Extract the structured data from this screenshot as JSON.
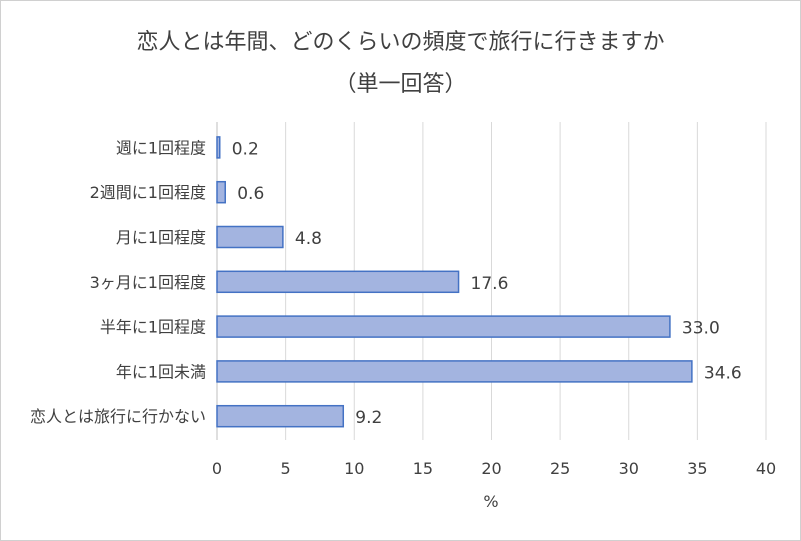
{
  "chart_data": {
    "type": "bar",
    "orientation": "horizontal",
    "title_line1": "恋人とは年間、どのくらいの頻度で旅行に行きますか",
    "title_line2": "（単一回答）",
    "categories": [
      "週に1回程度",
      "2週間に1回程度",
      "月に1回程度",
      "3ヶ月に1回程度",
      "半年に1回程度",
      "年に1回未満",
      "恋人とは旅行に行かない"
    ],
    "values": [
      0.2,
      0.6,
      4.8,
      17.6,
      33.0,
      34.6,
      9.2
    ],
    "value_labels": [
      "0.2",
      "0.6",
      "4.8",
      "17.6",
      "33.0",
      "34.6",
      "9.2"
    ],
    "xlabel": "%",
    "ylabel": "",
    "xlim": [
      0,
      40
    ],
    "x_ticks": [
      "0",
      "5",
      "10",
      "15",
      "20",
      "25",
      "30",
      "35",
      "40"
    ],
    "grid": "vertical",
    "legend": "none",
    "colors": {
      "bar_fill": "#a3b4e0",
      "bar_stroke": "#4472c4",
      "grid": "#d9d9d9",
      "text": "#404040"
    }
  }
}
